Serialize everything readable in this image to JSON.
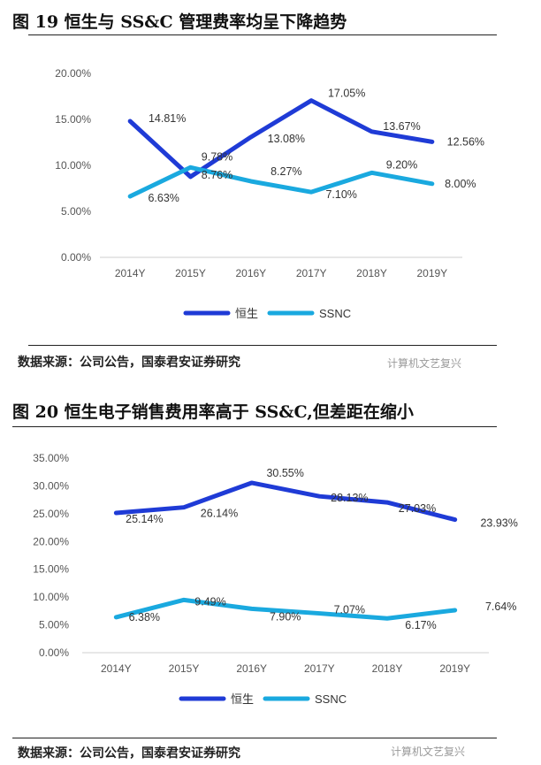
{
  "charts": [
    {
      "title": "图 19 恒生与 SS&C 管理费率均呈下降趋势",
      "source": "数据来源：公司公告，国泰君安证券研究",
      "watermark": "计算机文艺复兴"
    },
    {
      "title": "图 20 恒生电子销售费用率高于 SS&C,但差距在缩小",
      "source": "数据来源：公司公告，国泰君安证券研究",
      "watermark": "计算机文艺复兴"
    }
  ],
  "colors": {
    "hundsun": "#1f3bd6",
    "ssnc": "#1aa9df"
  },
  "chart_data": [
    {
      "type": "line",
      "categories": [
        "2014Y",
        "2015Y",
        "2016Y",
        "2017Y",
        "2018Y",
        "2019Y"
      ],
      "yticks": [
        "0.00%",
        "5.00%",
        "10.00%",
        "15.00%",
        "20.00%"
      ],
      "ylim": [
        0,
        20
      ],
      "grid": false,
      "legend_position": "bottom",
      "series": [
        {
          "name": "恒生",
          "values": [
            14.81,
            8.76,
            13.08,
            17.05,
            13.67,
            12.56
          ],
          "labels": [
            "14.81%",
            "8.76%",
            "13.08%",
            "17.05%",
            "13.67%",
            "12.56%"
          ]
        },
        {
          "name": "SSNC",
          "values": [
            6.63,
            9.78,
            8.27,
            7.1,
            9.2,
            8.0
          ],
          "labels": [
            "6.63%",
            "9.78%",
            "8.27%",
            "7.10%",
            "9.20%",
            "8.00%"
          ]
        }
      ]
    },
    {
      "type": "line",
      "categories": [
        "2014Y",
        "2015Y",
        "2016Y",
        "2017Y",
        "2018Y",
        "2019Y"
      ],
      "yticks": [
        "0.00%",
        "5.00%",
        "10.00%",
        "15.00%",
        "20.00%",
        "25.00%",
        "30.00%",
        "35.00%"
      ],
      "ylim": [
        0,
        35
      ],
      "grid": false,
      "legend_position": "bottom",
      "series": [
        {
          "name": "恒生",
          "values": [
            25.14,
            26.14,
            30.55,
            28.13,
            27.03,
            23.93
          ],
          "labels": [
            "25.14%",
            "26.14%",
            "30.55%",
            "28.13%",
            "27.03%",
            "23.93%"
          ]
        },
        {
          "name": "SSNC",
          "values": [
            6.38,
            9.49,
            7.9,
            7.07,
            6.17,
            7.64
          ],
          "labels": [
            "6.38%",
            "9.49%",
            "7.90%",
            "7.07%",
            "6.17%",
            "7.64%"
          ]
        }
      ]
    }
  ]
}
